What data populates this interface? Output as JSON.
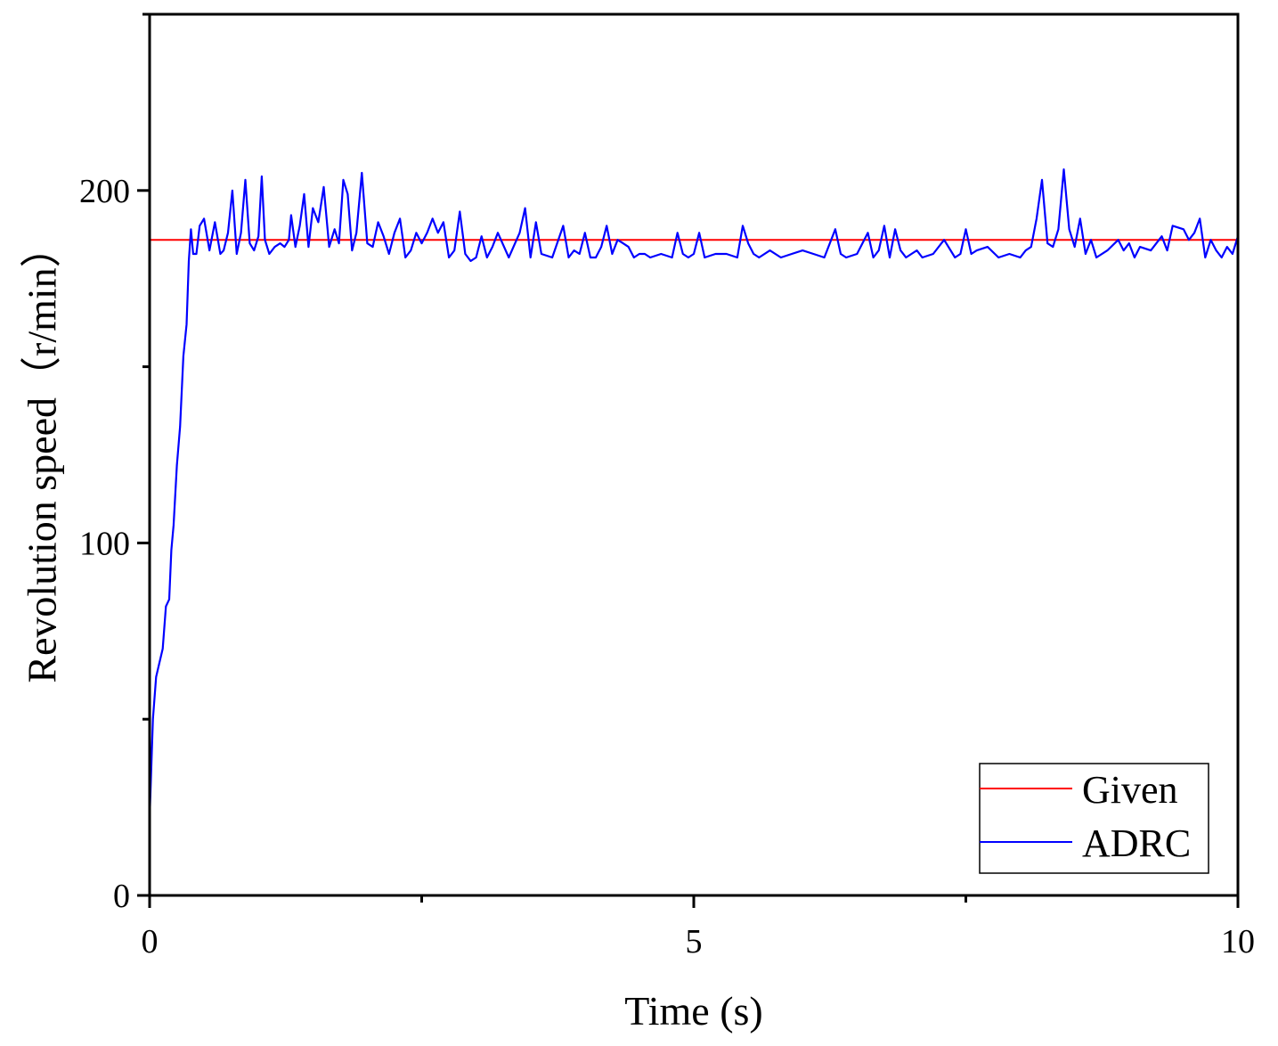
{
  "chart_data": {
    "type": "line",
    "xlabel": "Time (s)",
    "ylabel": "Revolution speed（r/min）",
    "xlim": [
      0,
      10
    ],
    "ylim": [
      0,
      250
    ],
    "xticks": [
      0,
      5,
      10
    ],
    "xticks_minor": [
      2.5,
      7.5
    ],
    "yticks": [
      0,
      100,
      200
    ],
    "yticks_minor": [
      50,
      150,
      250
    ],
    "grid": false,
    "legend_position": "bottom-right",
    "series": [
      {
        "name": "Given",
        "color": "#ff0000",
        "x": [
          0,
          10
        ],
        "y": [
          186,
          186
        ]
      },
      {
        "name": "ADRC",
        "color": "#0000ff",
        "x": [
          0.0,
          0.03,
          0.06,
          0.09,
          0.12,
          0.15,
          0.18,
          0.2,
          0.22,
          0.25,
          0.28,
          0.31,
          0.34,
          0.36,
          0.38,
          0.4,
          0.43,
          0.46,
          0.5,
          0.55,
          0.6,
          0.65,
          0.68,
          0.72,
          0.76,
          0.8,
          0.84,
          0.88,
          0.92,
          0.96,
          1.0,
          1.03,
          1.06,
          1.1,
          1.15,
          1.2,
          1.24,
          1.28,
          1.3,
          1.34,
          1.38,
          1.42,
          1.46,
          1.5,
          1.55,
          1.6,
          1.65,
          1.7,
          1.74,
          1.78,
          1.82,
          1.86,
          1.9,
          1.95,
          2.0,
          2.05,
          2.1,
          2.15,
          2.2,
          2.25,
          2.3,
          2.35,
          2.4,
          2.45,
          2.5,
          2.55,
          2.6,
          2.65,
          2.7,
          2.75,
          2.8,
          2.85,
          2.9,
          2.95,
          3.0,
          3.05,
          3.1,
          3.15,
          3.2,
          3.3,
          3.4,
          3.45,
          3.5,
          3.55,
          3.6,
          3.7,
          3.8,
          3.85,
          3.9,
          3.95,
          4.0,
          4.05,
          4.1,
          4.15,
          4.2,
          4.25,
          4.3,
          4.35,
          4.4,
          4.45,
          4.5,
          4.55,
          4.6,
          4.7,
          4.8,
          4.85,
          4.9,
          4.95,
          5.0,
          5.05,
          5.1,
          5.2,
          5.3,
          5.4,
          5.45,
          5.5,
          5.55,
          5.6,
          5.7,
          5.8,
          5.9,
          6.0,
          6.1,
          6.2,
          6.3,
          6.35,
          6.4,
          6.5,
          6.6,
          6.65,
          6.7,
          6.75,
          6.8,
          6.85,
          6.9,
          6.95,
          7.0,
          7.05,
          7.1,
          7.2,
          7.3,
          7.4,
          7.45,
          7.5,
          7.55,
          7.6,
          7.7,
          7.8,
          7.9,
          8.0,
          8.05,
          8.1,
          8.15,
          8.2,
          8.25,
          8.3,
          8.35,
          8.4,
          8.45,
          8.5,
          8.55,
          8.6,
          8.65,
          8.7,
          8.8,
          8.9,
          8.95,
          9.0,
          9.05,
          9.1,
          9.2,
          9.3,
          9.35,
          9.4,
          9.5,
          9.55,
          9.6,
          9.65,
          9.7,
          9.75,
          9.8,
          9.85,
          9.9,
          9.95,
          10.0
        ],
        "y": [
          22,
          50,
          62,
          66,
          70,
          82,
          84,
          98,
          105,
          122,
          133,
          153,
          162,
          180,
          189,
          182,
          182,
          190,
          192,
          183,
          191,
          182,
          183,
          188,
          200,
          182,
          188,
          203,
          185,
          183,
          187,
          204,
          186,
          182,
          184,
          185,
          184,
          186,
          193,
          184,
          190,
          199,
          184,
          195,
          191,
          201,
          184,
          189,
          185,
          203,
          199,
          183,
          188,
          205,
          185,
          184,
          191,
          187,
          182,
          188,
          192,
          181,
          183,
          188,
          185,
          188,
          192,
          188,
          191,
          181,
          183,
          194,
          182,
          180,
          181,
          187,
          181,
          184,
          188,
          181,
          188,
          195,
          181,
          191,
          182,
          181,
          190,
          181,
          183,
          182,
          188,
          181,
          181,
          184,
          190,
          182,
          186,
          185,
          184,
          181,
          182,
          182,
          181,
          182,
          181,
          188,
          182,
          181,
          182,
          188,
          181,
          182,
          182,
          181,
          190,
          185,
          182,
          181,
          183,
          181,
          182,
          183,
          182,
          181,
          189,
          182,
          181,
          182,
          188,
          181,
          183,
          190,
          181,
          189,
          183,
          181,
          182,
          183,
          181,
          182,
          186,
          181,
          182,
          189,
          182,
          183,
          184,
          181,
          182,
          181,
          183,
          184,
          192,
          203,
          185,
          184,
          189,
          206,
          189,
          184,
          192,
          182,
          186,
          181,
          183,
          186,
          183,
          185,
          181,
          184,
          183,
          187,
          183,
          190,
          189,
          186,
          188,
          192,
          181,
          186,
          183,
          181,
          184,
          182,
          187
        ]
      }
    ]
  }
}
